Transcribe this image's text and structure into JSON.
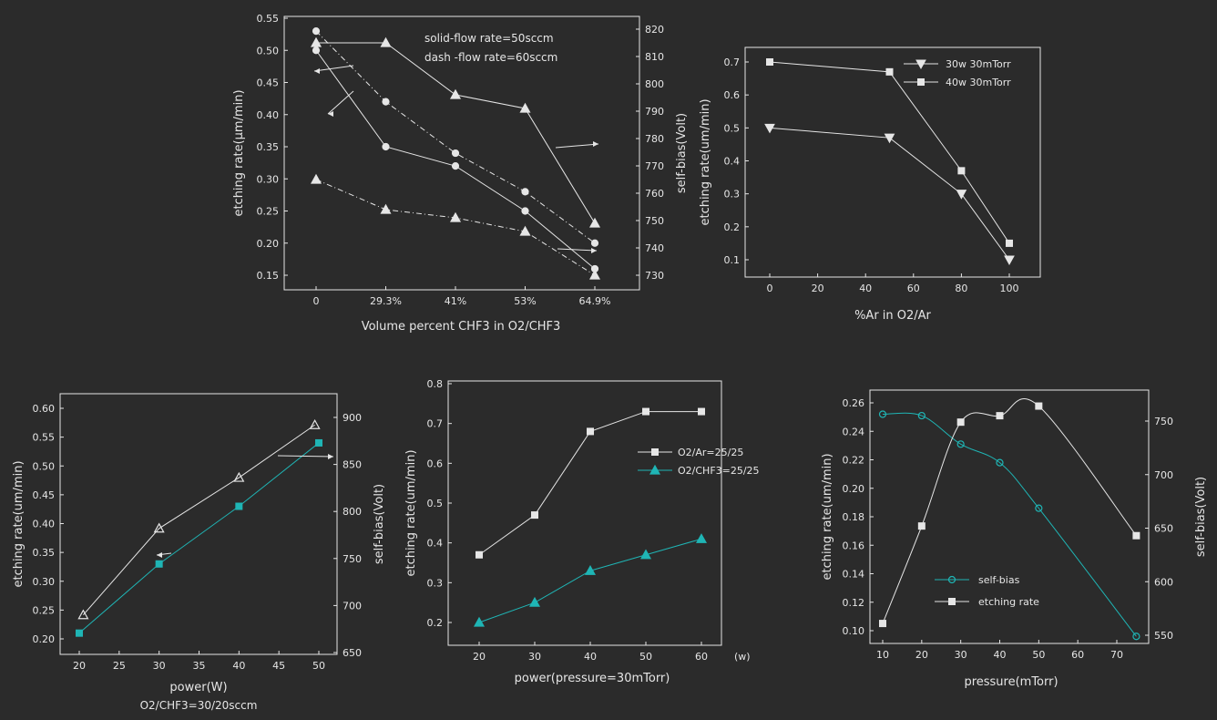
{
  "chart_data": [
    {
      "id": "p1",
      "type": "line",
      "xlabel": "Volume percent CHF3 in O2/CHF3",
      "ylabel": "etching rate(μm/min)",
      "y2label": "self-bias(Volt)",
      "categories": [
        "0",
        "29.3%",
        "41%",
        "53%",
        "64.9%"
      ],
      "ylim": [
        0.15,
        0.55
      ],
      "y2lim": [
        730,
        820
      ],
      "yticks": [
        "0.15",
        "0.20",
        "0.25",
        "0.30",
        "0.35",
        "0.40",
        "0.45",
        "0.50",
        "0.55"
      ],
      "y2ticks": [
        "730",
        "740",
        "750",
        "760",
        "770",
        "780",
        "790",
        "800",
        "810",
        "820"
      ],
      "annotations": [
        "solid-flow rate=50sccm",
        "dash -flow rate=60sccm"
      ],
      "series": [
        {
          "axis": "y",
          "dash": false,
          "marker": "circle",
          "values": [
            0.5,
            0.35,
            0.32,
            0.25,
            0.16
          ]
        },
        {
          "axis": "y",
          "dash": true,
          "marker": "circle",
          "values": [
            0.53,
            0.42,
            0.34,
            0.28,
            0.2
          ]
        },
        {
          "axis": "y2",
          "dash": false,
          "marker": "triangle",
          "values": [
            815,
            815,
            796,
            791,
            749
          ]
        },
        {
          "axis": "y2",
          "dash": true,
          "marker": "triangle",
          "values": [
            765,
            754,
            751,
            746,
            730
          ]
        }
      ],
      "colors": [
        "#e6e6e6"
      ]
    },
    {
      "id": "p2",
      "type": "line",
      "xlabel": "%Ar in O2/Ar",
      "ylabel": "etching rate(um/min)",
      "xlim": [
        -10,
        110
      ],
      "ylim": [
        0.05,
        0.75
      ],
      "xticks": [
        "0",
        "20",
        "40",
        "60",
        "80",
        "100"
      ],
      "yticks": [
        "0.1",
        "0.2",
        "0.3",
        "0.4",
        "0.5",
        "0.6",
        "0.7"
      ],
      "series": [
        {
          "name": "30w 30mTorr",
          "marker": "tri-down",
          "x": [
            0,
            50,
            80,
            100
          ],
          "y": [
            0.5,
            0.47,
            0.3,
            0.1
          ]
        },
        {
          "name": "40w 30mTorr",
          "marker": "square",
          "x": [
            0,
            50,
            80,
            100
          ],
          "y": [
            0.7,
            0.67,
            0.37,
            0.15
          ]
        }
      ]
    },
    {
      "id": "p3",
      "type": "line",
      "xlabel": "power(W)",
      "caption": "O2/CHF3=30/20sccm",
      "ylabel": "etching rate(um/min)",
      "y2label": "self-bias(Volt)",
      "xlim": [
        17,
        52
      ],
      "ylim": [
        0.18,
        0.62
      ],
      "y2lim": [
        650,
        920
      ],
      "xticks": [
        "20",
        "25",
        "30",
        "35",
        "40",
        "45",
        "50"
      ],
      "yticks": [
        "0.20",
        "0.25",
        "0.30",
        "0.35",
        "0.40",
        "0.45",
        "0.50",
        "0.55",
        "0.60"
      ],
      "y2ticks": [
        "650",
        "700",
        "750",
        "800",
        "850",
        "900"
      ],
      "series": [
        {
          "axis": "y",
          "marker": "square-filled",
          "color": "#1fb5b5",
          "x": [
            20,
            30,
            40,
            50
          ],
          "y": [
            0.21,
            0.33,
            0.43,
            0.54
          ]
        },
        {
          "axis": "y2",
          "marker": "triangle-open",
          "color": "#e6e6e6",
          "x": [
            20.5,
            30,
            40,
            49.5
          ],
          "y": [
            690,
            782,
            836,
            892
          ]
        }
      ]
    },
    {
      "id": "p4",
      "type": "line",
      "xlabel": "power(pressure=30mTorr)",
      "xunit": "(w)",
      "ylabel": "etching rate(um/min)",
      "xlim": [
        15,
        65
      ],
      "ylim": [
        0.15,
        0.8
      ],
      "xticks": [
        "20",
        "30",
        "40",
        "50",
        "60"
      ],
      "yticks": [
        "0.2",
        "0.3",
        "0.4",
        "0.5",
        "0.6",
        "0.7",
        "0.8"
      ],
      "series": [
        {
          "name": "O2/Ar=25/25",
          "marker": "square",
          "color": "#e6e6e6",
          "x": [
            20,
            30,
            40,
            50,
            60
          ],
          "y": [
            0.37,
            0.47,
            0.68,
            0.73,
            0.73
          ]
        },
        {
          "name": "O2/CHF3=25/25",
          "marker": "triangle",
          "color": "#1fb5b5",
          "x": [
            20,
            30,
            40,
            50,
            60
          ],
          "y": [
            0.2,
            0.25,
            0.33,
            0.37,
            0.41
          ]
        }
      ]
    },
    {
      "id": "p5",
      "type": "line",
      "xlabel": "pressure(mTorr)",
      "ylabel": "etching rate(um/min)",
      "y2label": "self-bias(Volt)",
      "xlim": [
        8,
        78
      ],
      "ylim": [
        0.095,
        0.265
      ],
      "y2lim": [
        540,
        770
      ],
      "xticks": [
        "10",
        "20",
        "30",
        "40",
        "50",
        "60",
        "70"
      ],
      "yticks": [
        "0.10",
        "0.12",
        "0.14",
        "0.16",
        "0.18",
        "0.20",
        "0.22",
        "0.24",
        "0.26"
      ],
      "y2ticks": [
        "550",
        "600",
        "650",
        "700",
        "750"
      ],
      "series": [
        {
          "name": "self-bias",
          "axis": "y",
          "marker": "circle-open",
          "color": "#1fb5b5",
          "x": [
            10,
            20,
            30,
            40,
            50,
            75
          ],
          "y": [
            0.252,
            0.251,
            0.231,
            0.218,
            0.186,
            0.096
          ]
        },
        {
          "name": "etching rate",
          "axis": "y2",
          "marker": "square",
          "color": "#e6e6e6",
          "x": [
            10,
            20,
            30,
            40,
            50,
            75
          ],
          "y": [
            561,
            652,
            749,
            755,
            764,
            643
          ]
        }
      ]
    }
  ]
}
